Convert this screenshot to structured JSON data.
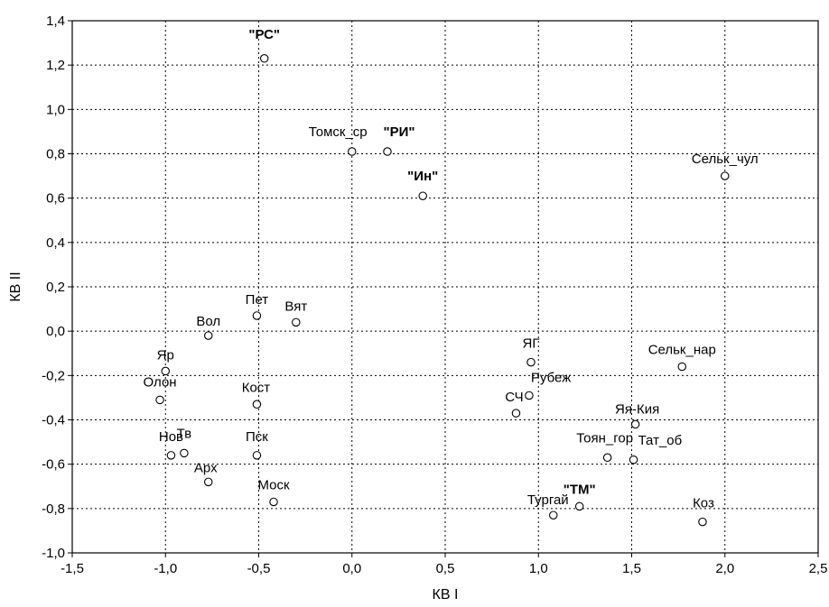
{
  "chart_data": {
    "type": "scatter",
    "title": "",
    "xlabel": "КВ I",
    "ylabel": "КВ II",
    "xlim": [
      -1.5,
      2.5
    ],
    "ylim": [
      -1.0,
      1.4
    ],
    "xticks": [
      -1.5,
      -1.0,
      -0.5,
      0.0,
      0.5,
      1.0,
      1.5,
      2.0,
      2.5
    ],
    "yticks": [
      -1.0,
      -0.8,
      -0.6,
      -0.4,
      -0.2,
      0.0,
      0.2,
      0.4,
      0.6,
      0.8,
      1.0,
      1.2,
      1.4
    ],
    "xtick_labels": [
      "-1,5",
      "-1,0",
      "-0,5",
      "0,0",
      "0,5",
      "1,0",
      "1,5",
      "2,0",
      "2,5"
    ],
    "ytick_labels": [
      "-1,0",
      "-0,8",
      "-0,6",
      "-0,4",
      "-0,2",
      "0,0",
      "0,2",
      "0,4",
      "0,6",
      "0,8",
      "1,0",
      "1,2",
      "1,4"
    ],
    "grid": true,
    "points": [
      {
        "label": "\"РС\"",
        "x": -0.47,
        "y": 1.23,
        "bold": true
      },
      {
        "label": "Томск_ср",
        "x": 0.0,
        "y": 0.81,
        "bold": false
      },
      {
        "label": "\"РИ\"",
        "x": 0.19,
        "y": 0.81,
        "bold": true
      },
      {
        "label": "\"Ин\"",
        "x": 0.38,
        "y": 0.61,
        "bold": true
      },
      {
        "label": "Сельк_чул",
        "x": 2.0,
        "y": 0.7,
        "bold": false
      },
      {
        "label": "Пет",
        "x": -0.51,
        "y": 0.07,
        "bold": false
      },
      {
        "label": "Вят",
        "x": -0.3,
        "y": 0.04,
        "bold": false
      },
      {
        "label": "Вол",
        "x": -0.77,
        "y": -0.02,
        "bold": false
      },
      {
        "label": "Яр",
        "x": -1.0,
        "y": -0.18,
        "bold": false
      },
      {
        "label": "Олон",
        "x": -1.03,
        "y": -0.31,
        "bold": false
      },
      {
        "label": "Кост",
        "x": -0.51,
        "y": -0.33,
        "bold": false
      },
      {
        "label": "ЯГ",
        "x": 0.96,
        "y": -0.14,
        "bold": false
      },
      {
        "label": "Рубеж",
        "x": 0.95,
        "y": -0.29,
        "bold": false
      },
      {
        "label": "СЧ",
        "x": 0.88,
        "y": -0.37,
        "bold": false
      },
      {
        "label": "Сельк_нар",
        "x": 1.77,
        "y": -0.16,
        "bold": false
      },
      {
        "label": "Яя-Кия",
        "x": 1.52,
        "y": -0.42,
        "bold": false
      },
      {
        "label": "Нов",
        "x": -0.97,
        "y": -0.56,
        "bold": false
      },
      {
        "label": "Тв",
        "x": -0.9,
        "y": -0.55,
        "bold": false
      },
      {
        "label": "Пск",
        "x": -0.51,
        "y": -0.56,
        "bold": false
      },
      {
        "label": "Арх",
        "x": -0.77,
        "y": -0.68,
        "bold": false
      },
      {
        "label": "Моск",
        "x": -0.42,
        "y": -0.77,
        "bold": false
      },
      {
        "label": "Тоян_гор",
        "x": 1.37,
        "y": -0.57,
        "bold": false
      },
      {
        "label": "Тат_об",
        "x": 1.51,
        "y": -0.58,
        "bold": false
      },
      {
        "label": "\"ТМ\"",
        "x": 1.22,
        "y": -0.79,
        "bold": true
      },
      {
        "label": "Тургай",
        "x": 1.08,
        "y": -0.83,
        "bold": false
      },
      {
        "label": "Коз",
        "x": 1.88,
        "y": -0.86,
        "bold": false
      }
    ]
  }
}
